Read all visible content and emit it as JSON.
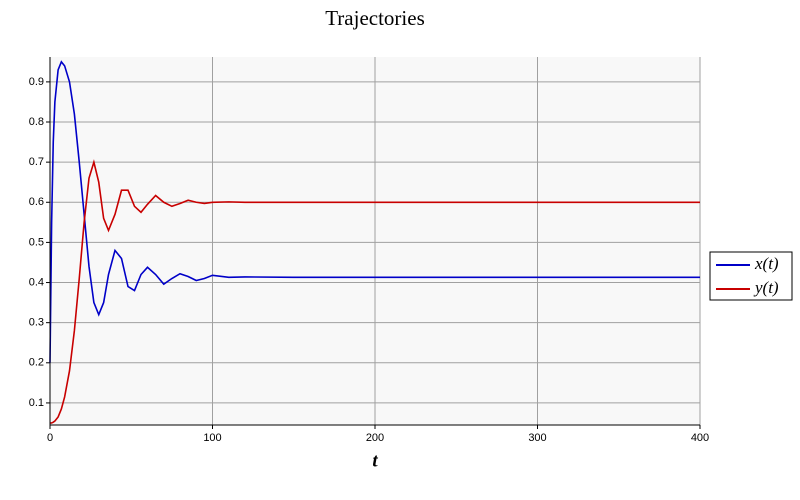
{
  "chart_data": {
    "type": "line",
    "title": "Trajectories",
    "x_label": "t",
    "x": [
      0,
      1,
      2,
      3,
      5,
      7,
      9,
      12,
      15,
      18,
      21,
      24,
      27,
      30,
      33,
      36,
      40,
      44,
      48,
      52,
      56,
      60,
      65,
      70,
      75,
      80,
      85,
      90,
      95,
      100,
      110,
      120,
      150,
      200,
      300,
      400
    ],
    "series": [
      {
        "name": "x(t)",
        "color": "#0000c8",
        "values": [
          0.2,
          0.55,
          0.75,
          0.85,
          0.93,
          0.95,
          0.94,
          0.9,
          0.82,
          0.7,
          0.57,
          0.44,
          0.35,
          0.32,
          0.35,
          0.42,
          0.48,
          0.46,
          0.39,
          0.38,
          0.42,
          0.438,
          0.42,
          0.396,
          0.41,
          0.422,
          0.415,
          0.405,
          0.41,
          0.418,
          0.413,
          0.414,
          0.413,
          0.413,
          0.413,
          0.413
        ]
      },
      {
        "name": "y(t)",
        "color": "#c80000",
        "values": [
          0.05,
          0.05,
          0.052,
          0.055,
          0.065,
          0.085,
          0.115,
          0.18,
          0.28,
          0.41,
          0.55,
          0.66,
          0.7,
          0.65,
          0.56,
          0.53,
          0.57,
          0.63,
          0.63,
          0.59,
          0.575,
          0.595,
          0.617,
          0.6,
          0.59,
          0.597,
          0.605,
          0.6,
          0.597,
          0.6,
          0.601,
          0.6,
          0.6,
          0.6,
          0.6,
          0.6
        ]
      }
    ],
    "xlim": [
      0,
      400
    ],
    "xticks": [
      0,
      100,
      200,
      300,
      400
    ],
    "ylim": [
      0.045,
      0.962
    ],
    "yticks": [
      0.1,
      0.2,
      0.3,
      0.4,
      0.5,
      0.6,
      0.7,
      0.8,
      0.9
    ],
    "grid": true,
    "legend": "right"
  }
}
